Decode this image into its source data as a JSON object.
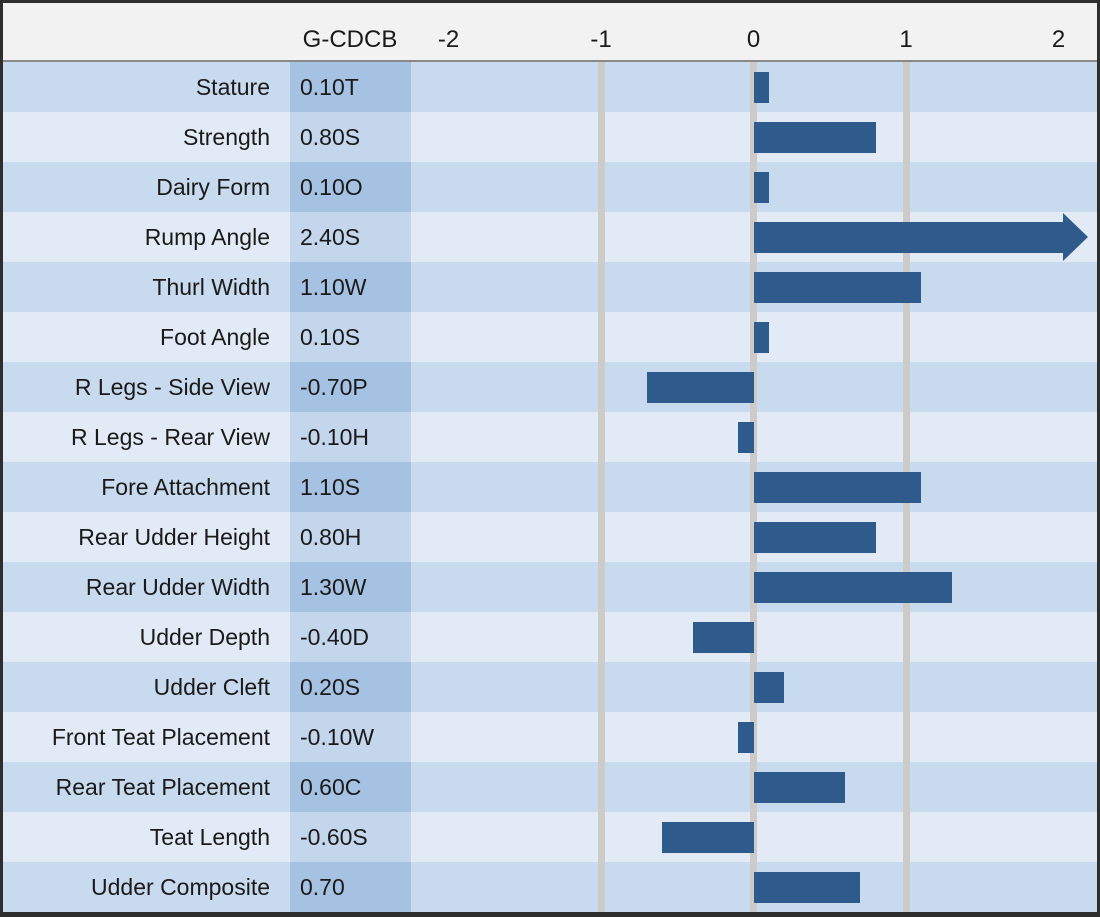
{
  "header": {
    "column_label": "G-CDCB"
  },
  "chart_data": {
    "type": "bar",
    "orientation": "horizontal",
    "title": "",
    "value_column_header": "G-CDCB",
    "categories": [
      "Stature",
      "Strength",
      "Dairy Form",
      "Rump Angle",
      "Thurl Width",
      "Foot Angle",
      "R Legs - Side View",
      "R Legs - Rear View",
      "Fore Attachment",
      "Rear Udder Height",
      "Rear Udder Width",
      "Udder Depth",
      "Udder Cleft",
      "Front Teat Placement",
      "Rear Teat Placement",
      "Teat Length",
      "Udder Composite"
    ],
    "values": [
      0.1,
      0.8,
      0.1,
      2.4,
      1.1,
      0.1,
      -0.7,
      -0.1,
      1.1,
      0.8,
      1.3,
      -0.4,
      0.2,
      -0.1,
      0.6,
      -0.6,
      0.7
    ],
    "value_labels": [
      "0.10T",
      "0.80S",
      "0.10O",
      "2.40S",
      "1.10W",
      "0.10S",
      "-0.70P",
      "-0.10H",
      "1.10S",
      "0.80H",
      "1.30W",
      "-0.40D",
      "0.20S",
      "-0.10W",
      "0.60C",
      "-0.60S",
      "0.70"
    ],
    "xlim": [
      -2,
      2
    ],
    "x_ticks": [
      -2,
      -1,
      0,
      1,
      2
    ],
    "gridlines_at": [
      -1,
      0,
      1
    ],
    "legend": "none",
    "grid": "vertical-only",
    "overflow_arrow_for_values_beyond_xlim": true
  },
  "colors": {
    "bar": "#2e5b8c",
    "row_odd": "#c8daee",
    "row_even": "#e2eaf5",
    "value_col_odd": "#a5c2e2",
    "value_col_even": "#c3d6ec",
    "header_bg": "#f2f2f2",
    "header_separator": "#8a8a8a",
    "gridline": "#cccbc8",
    "border": "#2e2e2e",
    "text": "#1a1a1a"
  }
}
